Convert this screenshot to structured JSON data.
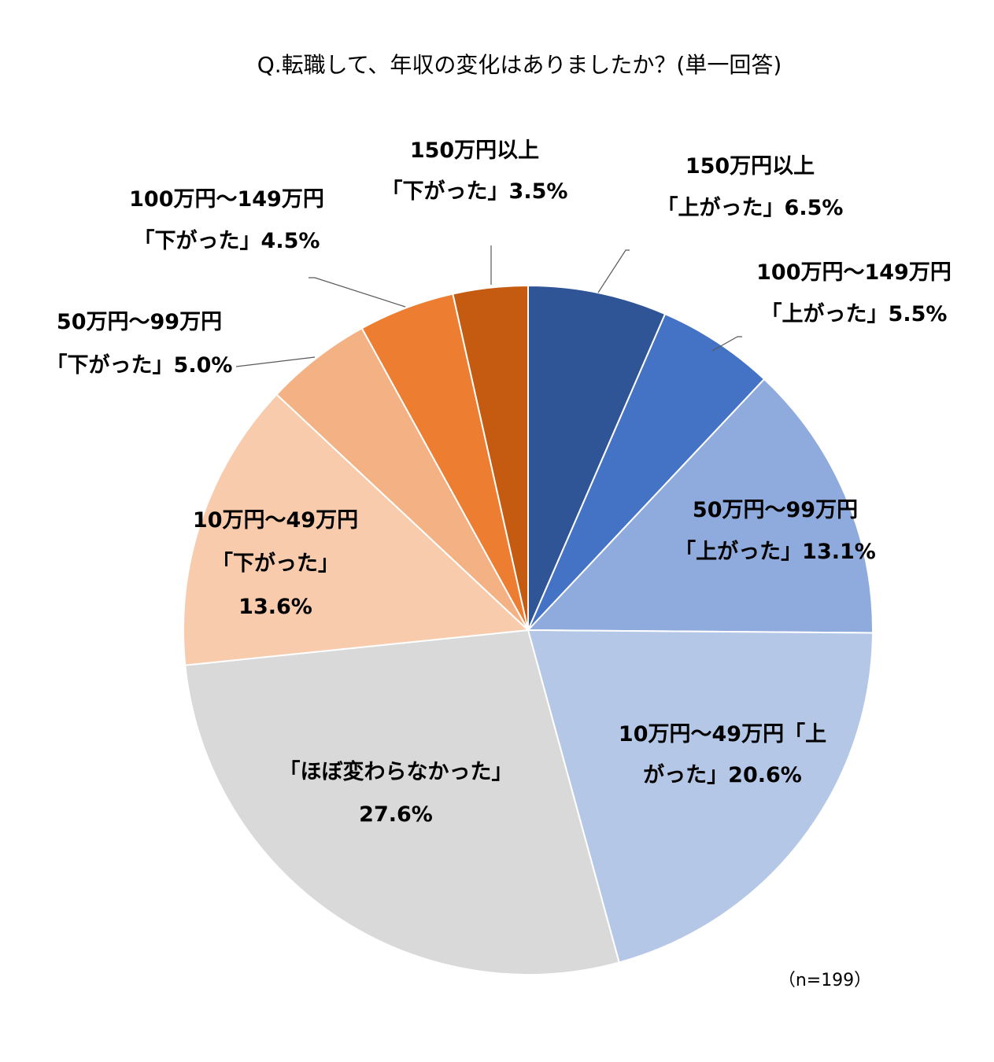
{
  "chart_data": {
    "type": "pie",
    "title": "Q.転職して、年収の変化はありましたか？(単一回答)",
    "note": "（n=199）",
    "unit": "%",
    "slices": [
      {
        "lines": [
          "150万円以上",
          "「上がった」6.5%"
        ],
        "value": 6.5,
        "color": "#2F5597"
      },
      {
        "lines": [
          "100万円～149万円",
          "「上がった」5.5%"
        ],
        "value": 5.5,
        "color": "#4472C4"
      },
      {
        "lines": [
          "50万円～99万円",
          "「上がった」13.1%"
        ],
        "value": 13.1,
        "color": "#8FAADC"
      },
      {
        "lines": [
          "10万円～49万円「上",
          "がった」20.6%"
        ],
        "value": 20.6,
        "color": "#B4C7E7"
      },
      {
        "lines": [
          "「ほぼ変わらなかった」",
          "27.6%"
        ],
        "value": 27.6,
        "color": "#D9D9D9"
      },
      {
        "lines": [
          "10万円～49万円",
          "「下がった」",
          "13.6%"
        ],
        "value": 13.6,
        "color": "#F8CBAD"
      },
      {
        "lines": [
          "50万円～99万円",
          "「下がった」5.0%"
        ],
        "value": 5.0,
        "color": "#F4B183"
      },
      {
        "lines": [
          "100万円～149万円",
          "「下がった」4.5%"
        ],
        "value": 4.5,
        "color": "#ED7D31"
      },
      {
        "lines": [
          "150万円以上",
          "「下がった」3.5%"
        ],
        "value": 3.5,
        "color": "#C55A11"
      }
    ]
  }
}
